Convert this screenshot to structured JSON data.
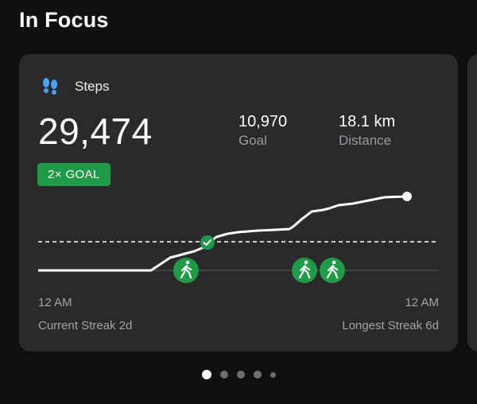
{
  "page": {
    "section_title": "In Focus"
  },
  "card": {
    "icon": "footprints-icon",
    "title": "Steps",
    "steps_value": "29,474",
    "goal": {
      "value": "10,970",
      "label": "Goal"
    },
    "distance": {
      "value": "18.1 km",
      "label": "Distance"
    },
    "badge": "2× GOAL",
    "axis": {
      "start": "12 AM",
      "end": "12 AM"
    },
    "current_streak": "Current Streak 2d",
    "longest_streak": "Longest Streak 6d",
    "colors": {
      "accent": "#1f9a46",
      "card": "#2a2a2c",
      "background": "#0f0f0f"
    }
  },
  "chart_data": {
    "type": "line",
    "goal_reached_fraction": 0.41,
    "walk_markers": 3
  },
  "pager": {
    "count": 5,
    "active": 0
  }
}
